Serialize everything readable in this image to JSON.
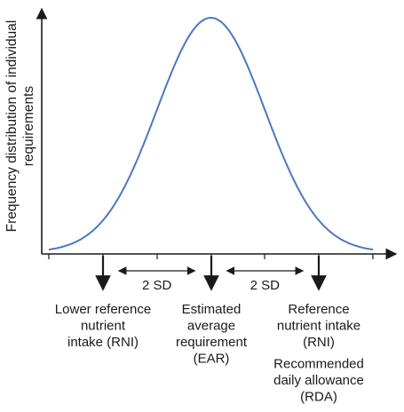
{
  "chart_data": {
    "type": "line",
    "ylabel_lines": [
      "Frequency distribution of individual",
      "requirements"
    ],
    "curve": {
      "mean": 0,
      "sd": 1,
      "xlim": [
        -3,
        3
      ]
    },
    "curve_color": "#4a78c2",
    "sd_label": "2 SD",
    "intervals": [
      {
        "from": -2,
        "to": 0,
        "label": "2 SD"
      },
      {
        "from": 0,
        "to": 2,
        "label": "2 SD"
      }
    ],
    "markers": [
      {
        "at": -2,
        "lines": [
          "Lower reference",
          "nutrient",
          "intake (RNI)"
        ],
        "extra_lines": []
      },
      {
        "at": 0,
        "lines": [
          "Estimated",
          "average",
          "requirement",
          "(EAR)"
        ],
        "extra_lines": []
      },
      {
        "at": 2,
        "lines": [
          "Reference",
          "nutrient intake",
          "(RNI)"
        ],
        "extra_lines": [
          "Recommended",
          "daily allowance",
          "(RDA)"
        ]
      }
    ]
  }
}
